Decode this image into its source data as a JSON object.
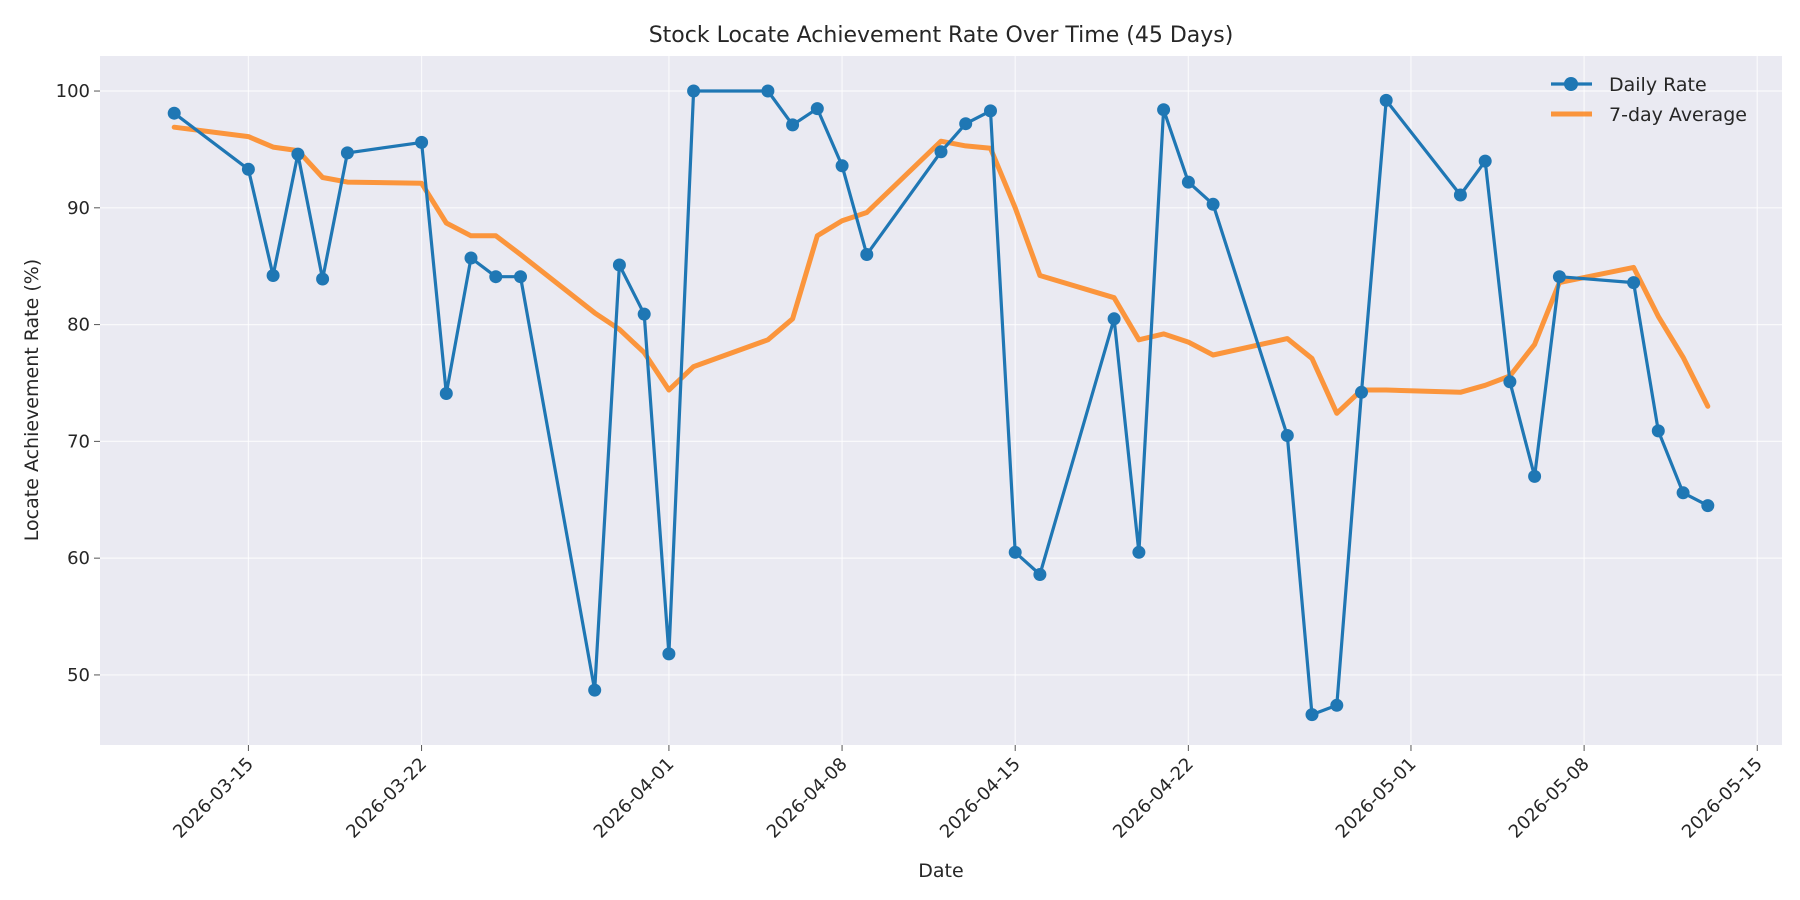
{
  "chart_data": {
    "type": "line",
    "title": "Stock Locate Achievement Rate Over Time (45 Days)",
    "xlabel": "Date",
    "ylabel": "Locate Achievement Rate (%)",
    "xlim": [
      "2026-03-09",
      "2026-05-16"
    ],
    "ylim": [
      44,
      103
    ],
    "y_ticks": [
      50,
      60,
      70,
      80,
      90,
      100
    ],
    "x_ticks": [
      "2026-03-15",
      "2026-03-22",
      "2026-04-01",
      "2026-04-08",
      "2026-04-15",
      "2026-04-22",
      "2026-05-01",
      "2026-05-08",
      "2026-05-15"
    ],
    "grid": true,
    "legend_position": "top-right",
    "x": [
      "2026-03-12",
      "2026-03-15",
      "2026-03-16",
      "2026-03-17",
      "2026-03-18",
      "2026-03-19",
      "2026-03-22",
      "2026-03-23",
      "2026-03-24",
      "2026-03-25",
      "2026-03-26",
      "2026-03-29",
      "2026-03-30",
      "2026-03-31",
      "2026-04-01",
      "2026-04-02",
      "2026-04-05",
      "2026-04-06",
      "2026-04-07",
      "2026-04-08",
      "2026-04-09",
      "2026-04-12",
      "2026-04-13",
      "2026-04-14",
      "2026-04-15",
      "2026-04-16",
      "2026-04-19",
      "2026-04-20",
      "2026-04-21",
      "2026-04-22",
      "2026-04-23",
      "2026-04-26",
      "2026-04-27",
      "2026-04-28",
      "2026-04-29",
      "2026-04-30",
      "2026-05-03",
      "2026-05-04",
      "2026-05-05",
      "2026-05-06",
      "2026-05-07",
      "2026-05-10",
      "2026-05-11",
      "2026-05-12",
      "2026-05-13"
    ],
    "series": [
      {
        "name": "Daily Rate",
        "color": "#1f77b4",
        "marker": "circle",
        "values": [
          98.1,
          93.3,
          84.2,
          94.6,
          83.9,
          94.7,
          95.6,
          74.1,
          85.7,
          84.1,
          84.1,
          48.7,
          85.1,
          80.9,
          51.8,
          100.0,
          100.0,
          97.1,
          98.5,
          93.6,
          86.0,
          94.8,
          97.2,
          98.3,
          60.5,
          58.6,
          80.5,
          60.5,
          98.4,
          92.2,
          90.3,
          70.5,
          46.6,
          47.4,
          74.2,
          99.2,
          91.1,
          94.0,
          75.1,
          67.0,
          84.1,
          83.6,
          70.9,
          65.6,
          64.5
        ]
      },
      {
        "name": "7-day Average",
        "color": "#ff7f0e",
        "values": [
          96.9,
          96.1,
          95.2,
          94.9,
          92.6,
          92.2,
          92.1,
          88.7,
          87.6,
          87.6,
          86.0,
          81.0,
          79.6,
          77.6,
          74.4,
          76.4,
          78.7,
          80.5,
          87.6,
          88.9,
          89.6,
          95.7,
          95.3,
          95.1,
          90.0,
          84.2,
          82.3,
          78.7,
          79.2,
          78.5,
          77.4,
          78.8,
          77.1,
          72.4,
          74.4,
          74.4,
          74.2,
          74.8,
          75.6,
          78.3,
          83.6,
          84.9,
          80.7,
          77.2,
          73.0
        ]
      }
    ]
  }
}
